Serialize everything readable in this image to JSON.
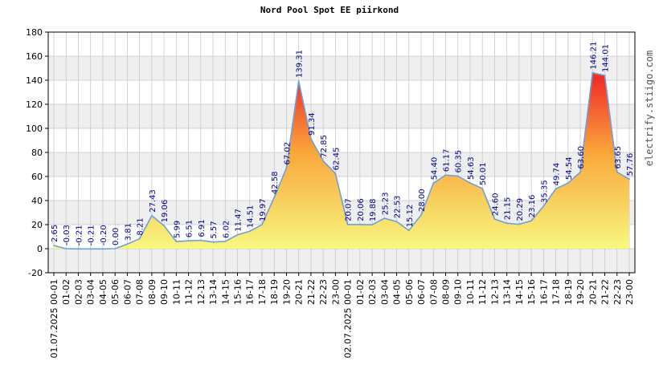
{
  "chart_data": {
    "type": "area",
    "title": "Nord Pool Spot EE piirkond",
    "watermark": "electrify.stiigo.com",
    "xlabel": "",
    "ylabel": "",
    "ylim": [
      -20,
      180
    ],
    "yticks": [
      -20,
      0,
      20,
      40,
      60,
      80,
      100,
      120,
      140,
      160,
      180
    ],
    "grid": true,
    "categories": [
      "01.07.2025 00-01",
      "01-02",
      "02-03",
      "03-04",
      "04-05",
      "05-06",
      "06-07",
      "07-08",
      "08-09",
      "09-10",
      "10-11",
      "11-12",
      "12-13",
      "13-14",
      "14-15",
      "15-16",
      "16-17",
      "17-18",
      "18-19",
      "19-20",
      "20-21",
      "21-22",
      "22-23",
      "23-00",
      "02.07.2025 00-01",
      "01-02",
      "02-03",
      "03-04",
      "04-05",
      "05-06",
      "06-07",
      "07-08",
      "08-09",
      "09-10",
      "10-11",
      "11-12",
      "12-13",
      "13-14",
      "14-15",
      "15-16",
      "16-17",
      "17-18",
      "18-19",
      "19-20",
      "20-21",
      "21-22",
      "22-23",
      "23-00"
    ],
    "values": [
      2.65,
      -0.03,
      -0.21,
      -0.21,
      -0.2,
      0.0,
      3.81,
      8.21,
      27.43,
      19.06,
      5.99,
      6.51,
      6.91,
      5.57,
      6.02,
      11.47,
      14.51,
      19.97,
      42.58,
      67.02,
      139.31,
      91.34,
      72.85,
      62.45,
      20.07,
      20.06,
      19.88,
      25.23,
      22.53,
      15.12,
      28.0,
      54.4,
      61.17,
      60.35,
      54.63,
      50.01,
      24.6,
      21.15,
      20.29,
      23.16,
      35.35,
      49.74,
      54.54,
      63.6,
      146.21,
      144.01,
      63.65,
      57.76
    ],
    "value_labels": [
      "2.65",
      "-0.03",
      "-0.21",
      "-0.21",
      "-0.20",
      "0.00",
      "3.81",
      "8.21",
      "27.43",
      "19.06",
      "5.99",
      "6.51",
      "6.91",
      "5.57",
      "6.02",
      "11.47",
      "14.51",
      "19.97",
      "42.58",
      "67.02",
      "139.31",
      "91.34",
      "72.85",
      "62.45",
      "20.07",
      "20.06",
      "19.88",
      "25.23",
      "22.53",
      "15.12",
      "28.00",
      "54.40",
      "61.17",
      "60.35",
      "54.63",
      "50.01",
      "24.60",
      "21.15",
      "20.29",
      "23.16",
      "35.35",
      "49.74",
      "54.54",
      "63.60",
      "146.21",
      "144.01",
      "63.65",
      "57.76"
    ],
    "colors": {
      "line": "#6fa0d8",
      "fill_low": "#f8f880",
      "fill_mid": "#f9a53a",
      "fill_high": "#f2302a",
      "band": "#efefef",
      "grid": "#c8c8c8",
      "label": "#00008b"
    }
  }
}
